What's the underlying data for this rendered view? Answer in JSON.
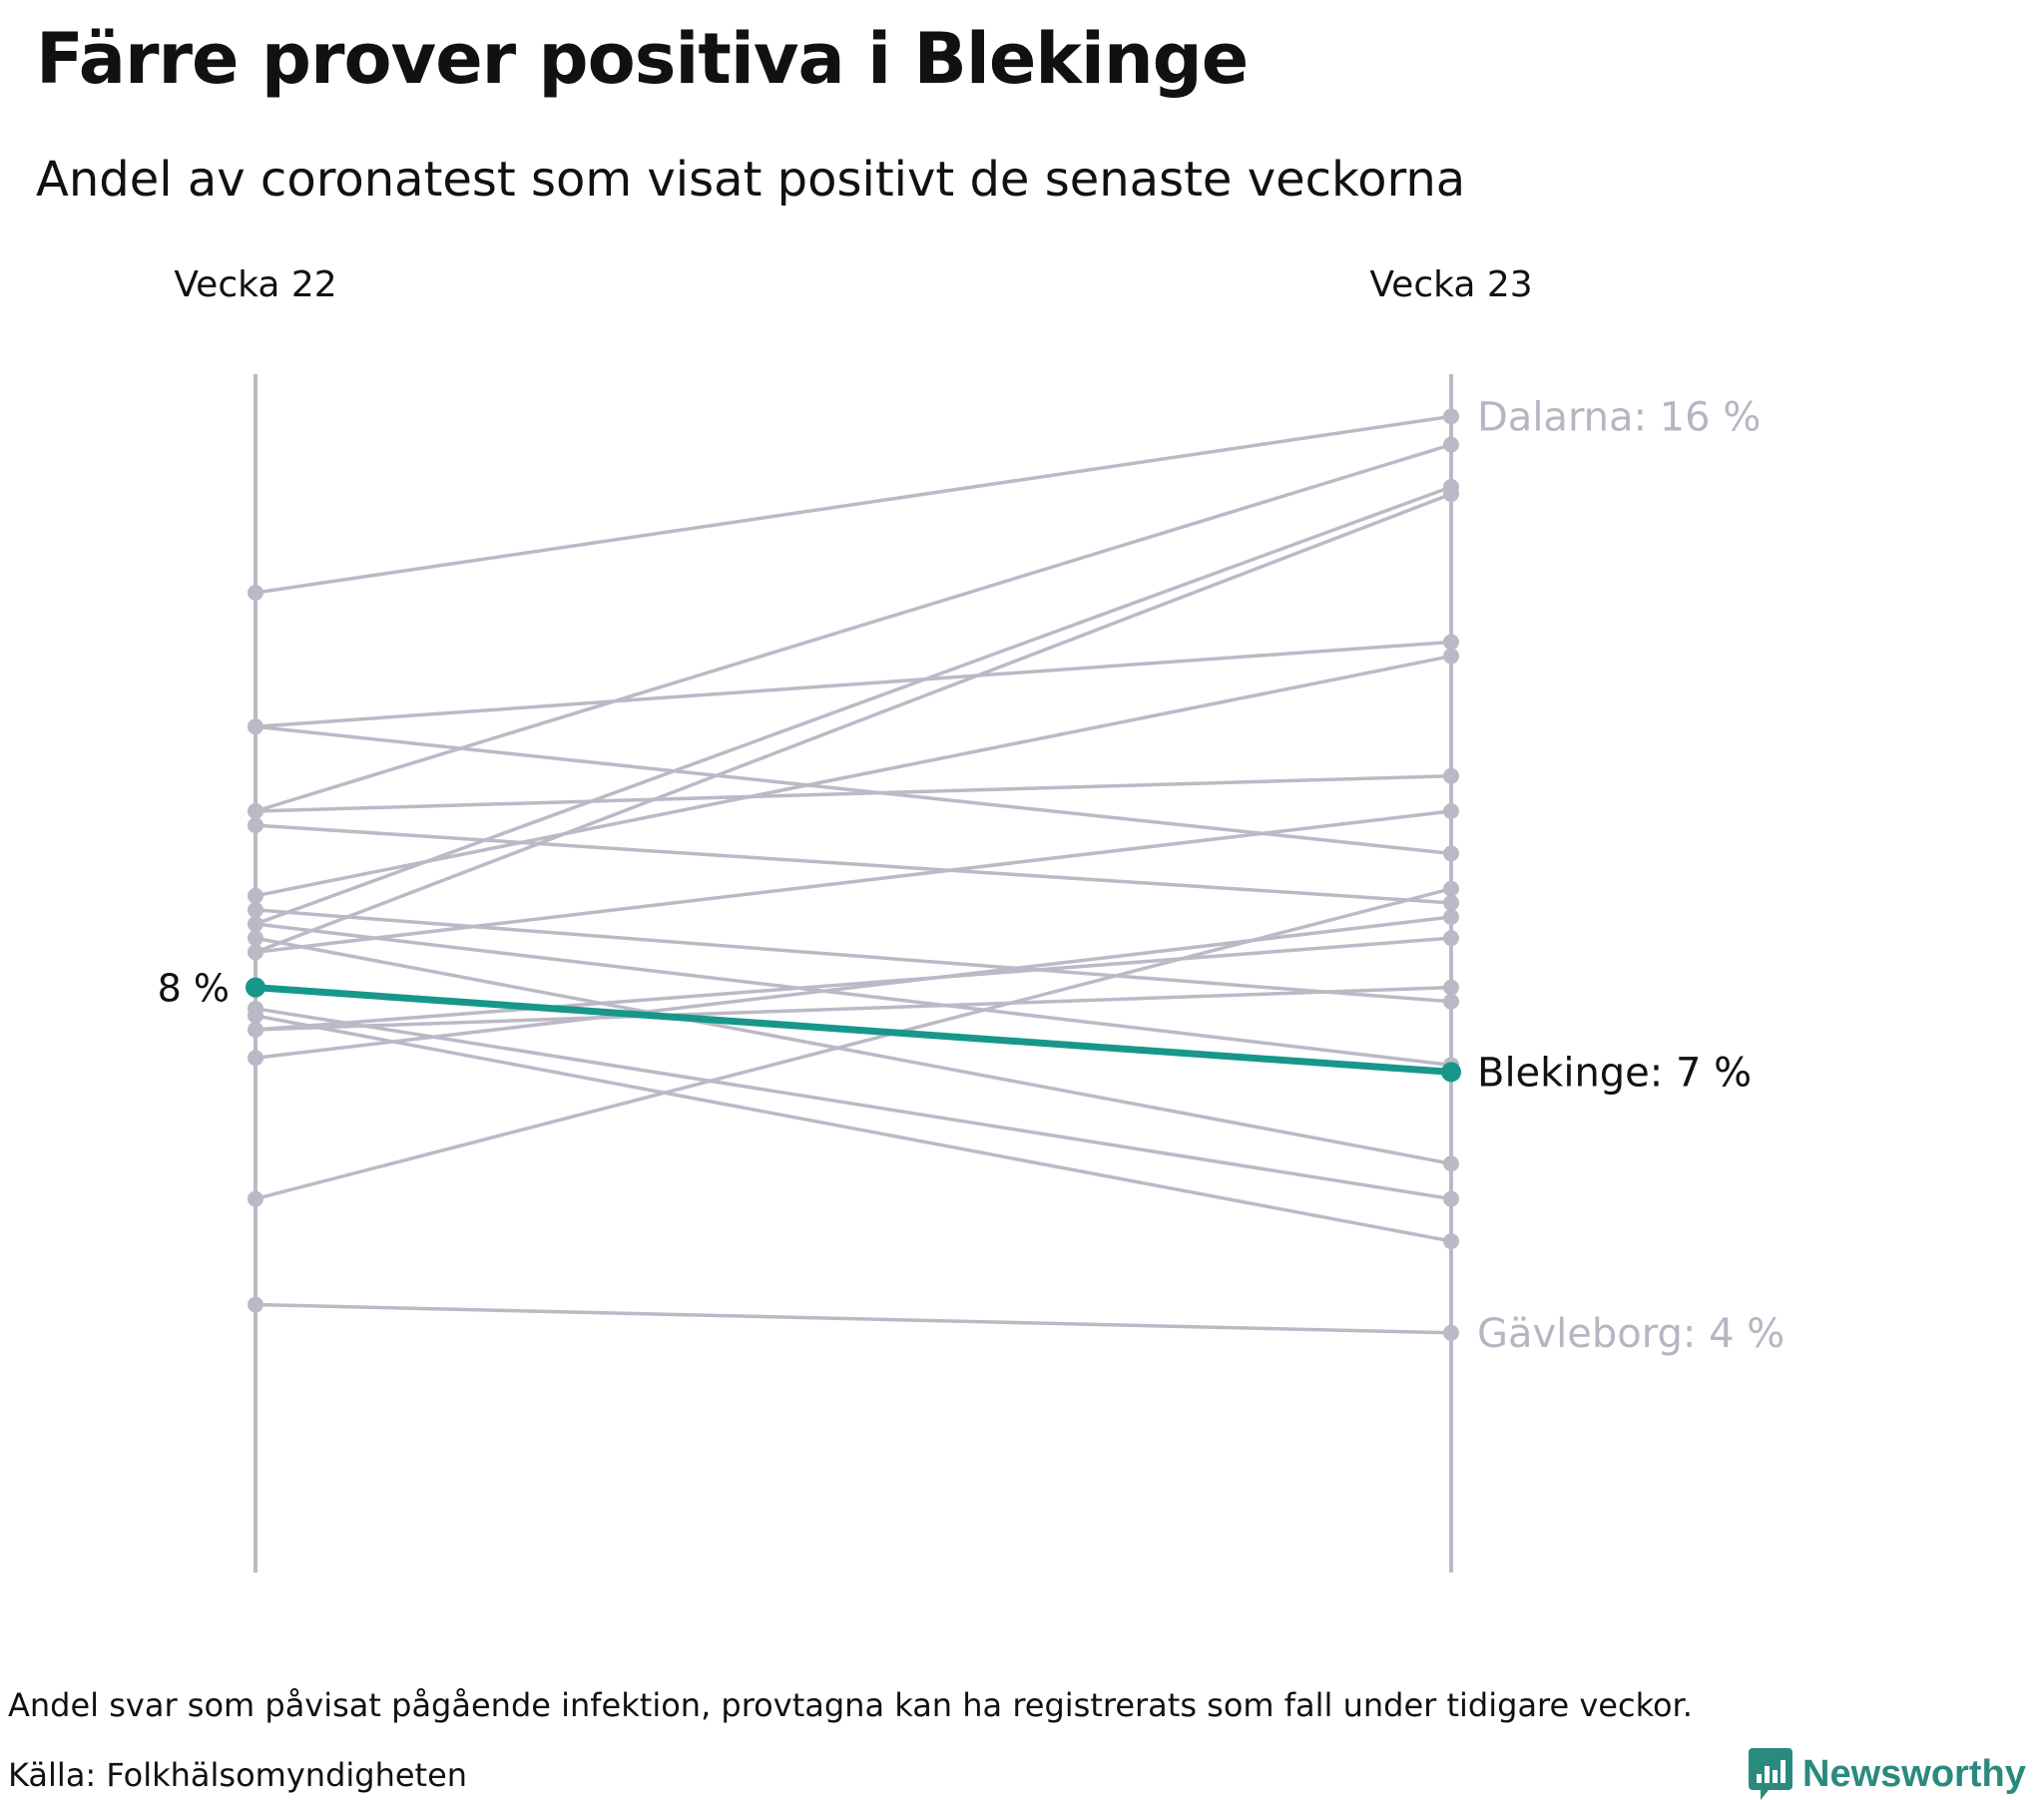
{
  "title": "Färre prover positiva i Blekinge",
  "subtitle": "Andel av coronatest som visat positivt de senaste veckorna",
  "footnote": "Andel svar som påvisat pågående infektion, provtagna kan ha registrerats som fall under tidigare veckor.",
  "source": "Källa: Folkhälsomyndigheten",
  "brand": {
    "name": "Newsworthy",
    "color": "#2a8a7e",
    "icon": "bar-chart-speech-icon"
  },
  "colors": {
    "highlight": "#17978a",
    "others": "#bcb9c7",
    "label_others": "#b8b5c3",
    "label_main": "#111111"
  },
  "chart_data": {
    "type": "line",
    "chart_subtype": "slope",
    "categories": [
      "Vecka 22",
      "Vecka 23"
    ],
    "y_unit": "%",
    "ylim": [
      0,
      17
    ],
    "grid": false,
    "highlight": "Blekinge",
    "value_labels": {
      "start": "8 %",
      "annotations": [
        {
          "label": "Dalarna: 16 %",
          "series": "Dalarna"
        },
        {
          "label": "Blekinge: 7 %",
          "series": "Blekinge"
        },
        {
          "label": "Gävleborg: 4 %",
          "series": "Gävleborg"
        }
      ]
    },
    "series": [
      {
        "name": "Dalarna",
        "values": [
          13.9,
          16.4
        ]
      },
      {
        "name": "Blekinge",
        "values": [
          8.3,
          7.1
        ]
      },
      {
        "name": "Gävleborg",
        "values": [
          3.8,
          3.4
        ]
      },
      {
        "name": "",
        "values": [
          10.8,
          16.0
        ]
      },
      {
        "name": "",
        "values": [
          9.2,
          15.4
        ]
      },
      {
        "name": "",
        "values": [
          8.8,
          15.3
        ]
      },
      {
        "name": "",
        "values": [
          12.0,
          13.2
        ]
      },
      {
        "name": "",
        "values": [
          9.6,
          13.0
        ]
      },
      {
        "name": "",
        "values": [
          10.8,
          11.3
        ]
      },
      {
        "name": "",
        "values": [
          8.8,
          10.8
        ]
      },
      {
        "name": "",
        "values": [
          12.0,
          10.2
        ]
      },
      {
        "name": "",
        "values": [
          10.6,
          9.5
        ]
      },
      {
        "name": "",
        "values": [
          5.3,
          9.7
        ]
      },
      {
        "name": "",
        "values": [
          7.3,
          9.3
        ]
      },
      {
        "name": "",
        "values": [
          7.7,
          9.0
        ]
      },
      {
        "name": "",
        "values": [
          9.4,
          8.1
        ]
      },
      {
        "name": "",
        "values": [
          7.7,
          8.3
        ]
      },
      {
        "name": "",
        "values": [
          9.2,
          7.2
        ]
      },
      {
        "name": "",
        "values": [
          9.0,
          5.8
        ]
      },
      {
        "name": "",
        "values": [
          8.0,
          5.3
        ]
      },
      {
        "name": "",
        "values": [
          7.9,
          4.7
        ]
      }
    ]
  }
}
